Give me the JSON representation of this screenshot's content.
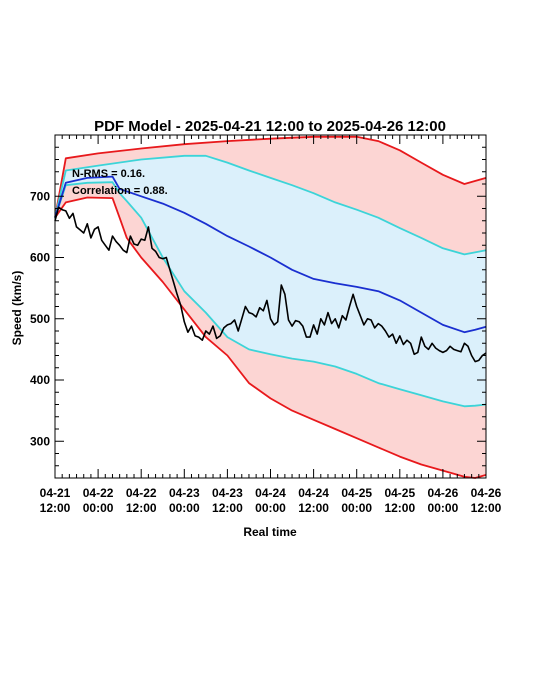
{
  "chart_data": {
    "type": "line",
    "title": "PDF Model - 2025-04-21 12:00 to 2025-04-26 12:00",
    "xlabel": "Real time",
    "ylabel": "Speed (km/s)",
    "xlim_hours": [
      0,
      120
    ],
    "ylim": [
      240,
      800
    ],
    "y_ticks": [
      300,
      400,
      500,
      600,
      700
    ],
    "x_ticks": [
      {
        "hours": 0,
        "line1": "04-21",
        "line2": "12:00"
      },
      {
        "hours": 12,
        "line1": "04-22",
        "line2": "00:00"
      },
      {
        "hours": 24,
        "line1": "04-22",
        "line2": "12:00"
      },
      {
        "hours": 36,
        "line1": "04-23",
        "line2": "00:00"
      },
      {
        "hours": 48,
        "line1": "04-23",
        "line2": "12:00"
      },
      {
        "hours": 60,
        "line1": "04-24",
        "line2": "00:00"
      },
      {
        "hours": 72,
        "line1": "04-24",
        "line2": "12:00"
      },
      {
        "hours": 84,
        "line1": "04-25",
        "line2": "00:00"
      },
      {
        "hours": 96,
        "line1": "04-25",
        "line2": "12:00"
      },
      {
        "hours": 108,
        "line1": "04-26",
        "line2": "00:00"
      },
      {
        "hours": 120,
        "line1": "04-26",
        "line2": "12:00"
      }
    ],
    "annotations": [
      "N-RMS = 0.16.",
      "Correlation = 0.88."
    ],
    "colors": {
      "outer_fill": "#fcd5d3",
      "inner_fill": "#dbf0fb",
      "outer_line": "#e8191c",
      "inner_line": "#3cd4d8",
      "median_line": "#1a2fd0",
      "observed_line": "#000000"
    },
    "series": [
      {
        "role": "outer-upper",
        "color": "#e8191c",
        "x": [
          0,
          3,
          12,
          24,
          36,
          48,
          60,
          72,
          84,
          90,
          96,
          102,
          108,
          114,
          120
        ],
        "y": [
          665,
          762,
          770,
          778,
          785,
          790,
          794,
          797,
          797,
          790,
          775,
          755,
          735,
          720,
          730
        ]
      },
      {
        "role": "outer-lower",
        "color": "#e8191c",
        "x": [
          0,
          3,
          9,
          16,
          18,
          20,
          24,
          30,
          36,
          42,
          48,
          54,
          60,
          66,
          72,
          78,
          84,
          90,
          96,
          102,
          108,
          114,
          117,
          120
        ],
        "y": [
          665,
          690,
          698,
          697,
          665,
          632,
          600,
          560,
          515,
          470,
          440,
          395,
          370,
          350,
          335,
          320,
          305,
          290,
          275,
          262,
          252,
          242,
          240,
          245
        ]
      },
      {
        "role": "inner-upper",
        "color": "#3cd4d8",
        "x": [
          0,
          3,
          12,
          24,
          36,
          42,
          48,
          54,
          60,
          66,
          72,
          78,
          84,
          90,
          96,
          102,
          108,
          114,
          120
        ],
        "y": [
          665,
          742,
          750,
          760,
          766,
          766,
          755,
          742,
          730,
          718,
          705,
          690,
          678,
          665,
          648,
          632,
          615,
          605,
          612
        ]
      },
      {
        "role": "inner-lower",
        "color": "#3cd4d8",
        "x": [
          0,
          3,
          9,
          16,
          18,
          20,
          24,
          30,
          36,
          42,
          48,
          54,
          60,
          66,
          72,
          78,
          84,
          90,
          96,
          102,
          108,
          114,
          117,
          120
        ],
        "y": [
          665,
          718,
          722,
          723,
          705,
          692,
          665,
          600,
          545,
          510,
          470,
          450,
          442,
          435,
          430,
          422,
          410,
          395,
          385,
          375,
          365,
          357,
          358,
          360
        ]
      },
      {
        "role": "median",
        "color": "#1a2fd0",
        "x": [
          0,
          3,
          9,
          16,
          18,
          24,
          30,
          36,
          42,
          48,
          54,
          60,
          66,
          72,
          78,
          84,
          90,
          96,
          102,
          108,
          114,
          117,
          120
        ],
        "y": [
          665,
          722,
          730,
          732,
          712,
          700,
          688,
          673,
          655,
          635,
          618,
          600,
          580,
          565,
          558,
          552,
          545,
          530,
          510,
          490,
          478,
          482,
          487
        ]
      },
      {
        "role": "observed",
        "color": "#000000",
        "x": [
          0,
          1,
          2,
          3,
          4,
          5,
          6,
          7,
          8,
          9,
          10,
          11,
          12,
          13,
          14,
          15,
          16,
          17,
          18,
          19,
          20,
          21,
          22,
          23,
          24,
          25,
          26,
          27,
          28,
          29,
          30,
          31,
          32,
          33,
          34,
          35,
          36,
          37,
          38,
          39,
          40,
          41,
          42,
          43,
          44,
          45,
          46,
          47,
          48,
          49,
          50,
          51,
          52,
          53,
          54,
          55,
          56,
          57,
          58,
          59,
          60,
          61,
          62,
          63,
          64,
          65,
          66,
          67,
          68,
          69,
          70,
          71,
          72,
          73,
          74,
          75,
          76,
          77,
          78,
          79,
          80,
          81,
          82,
          83,
          84,
          85,
          86,
          87,
          88,
          89,
          90,
          91,
          92,
          93,
          94,
          95,
          96,
          97,
          98,
          99,
          100,
          101,
          102,
          103,
          104,
          105,
          106,
          107,
          108,
          109,
          110,
          111,
          112,
          113,
          114,
          115,
          116,
          117,
          118,
          119,
          120
        ],
        "y": [
          660,
          682,
          678,
          676,
          664,
          672,
          650,
          645,
          640,
          655,
          632,
          646,
          650,
          628,
          620,
          612,
          635,
          626,
          620,
          612,
          608,
          635,
          622,
          620,
          630,
          628,
          650,
          615,
          610,
          600,
          598,
          600,
          580,
          560,
          540,
          522,
          495,
          478,
          488,
          472,
          470,
          465,
          480,
          475,
          488,
          468,
          472,
          485,
          490,
          492,
          498,
          480,
          500,
          520,
          510,
          508,
          503,
          518,
          513,
          530,
          500,
          490,
          495,
          555,
          540,
          498,
          488,
          497,
          495,
          488,
          470,
          470,
          490,
          475,
          500,
          490,
          510,
          492,
          500,
          485,
          505,
          498,
          520,
          540,
          520,
          505,
          490,
          500,
          498,
          485,
          492,
          488,
          480,
          470,
          475,
          460,
          472,
          458,
          465,
          460,
          442,
          445,
          470,
          455,
          450,
          460,
          452,
          448,
          445,
          448,
          455,
          450,
          448,
          446,
          460,
          455,
          440,
          430,
          432,
          440,
          444
        ]
      }
    ]
  }
}
